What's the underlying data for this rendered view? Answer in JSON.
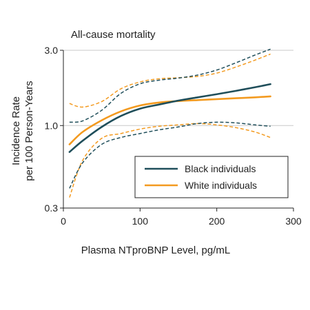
{
  "chart_data": {
    "type": "line",
    "title": "All-cause mortality",
    "xlabel": "Plasma NTproBNP Level, pg/mL",
    "ylabel_line1": "Incidence Rate",
    "ylabel_line2": "per 100 Person-Years",
    "x_ticks": [
      "0",
      "100",
      "200",
      "300"
    ],
    "y_ticks": [
      "0.3",
      "1.0",
      "3.0"
    ],
    "xlim": [
      0,
      300
    ],
    "ylim": [
      0.3,
      3.0
    ],
    "y_scale": "log",
    "gridlines_y": [
      1.0,
      3.0
    ],
    "legend_position": "lower-right",
    "series": [
      {
        "name": "Black individuals",
        "color": "#1f4e5a",
        "x": [
          8,
          25,
          50,
          75,
          100,
          125,
          150,
          175,
          200,
          225,
          250,
          270
        ],
        "y": [
          0.68,
          0.8,
          0.98,
          1.15,
          1.28,
          1.36,
          1.44,
          1.51,
          1.58,
          1.66,
          1.75,
          1.83
        ],
        "ci_upper": [
          1.05,
          1.07,
          1.25,
          1.6,
          1.84,
          1.94,
          2.0,
          2.09,
          2.25,
          2.5,
          2.8,
          3.05
        ],
        "ci_lower": [
          0.4,
          0.58,
          0.76,
          0.84,
          0.89,
          0.94,
          0.98,
          1.03,
          1.05,
          1.04,
          1.01,
          0.99
        ]
      },
      {
        "name": "White individuals",
        "color": "#f39a1f",
        "x": [
          8,
          25,
          50,
          75,
          100,
          125,
          150,
          175,
          200,
          225,
          250,
          270
        ],
        "y": [
          0.76,
          0.91,
          1.08,
          1.23,
          1.34,
          1.4,
          1.43,
          1.45,
          1.47,
          1.49,
          1.51,
          1.53
        ],
        "ci_upper": [
          1.38,
          1.31,
          1.42,
          1.71,
          1.89,
          1.98,
          2.01,
          2.05,
          2.15,
          2.35,
          2.6,
          2.84
        ],
        "ci_lower": [
          0.35,
          0.6,
          0.83,
          0.89,
          0.95,
          0.99,
          1.01,
          1.03,
          1.01,
          0.97,
          0.91,
          0.84
        ]
      }
    ]
  }
}
